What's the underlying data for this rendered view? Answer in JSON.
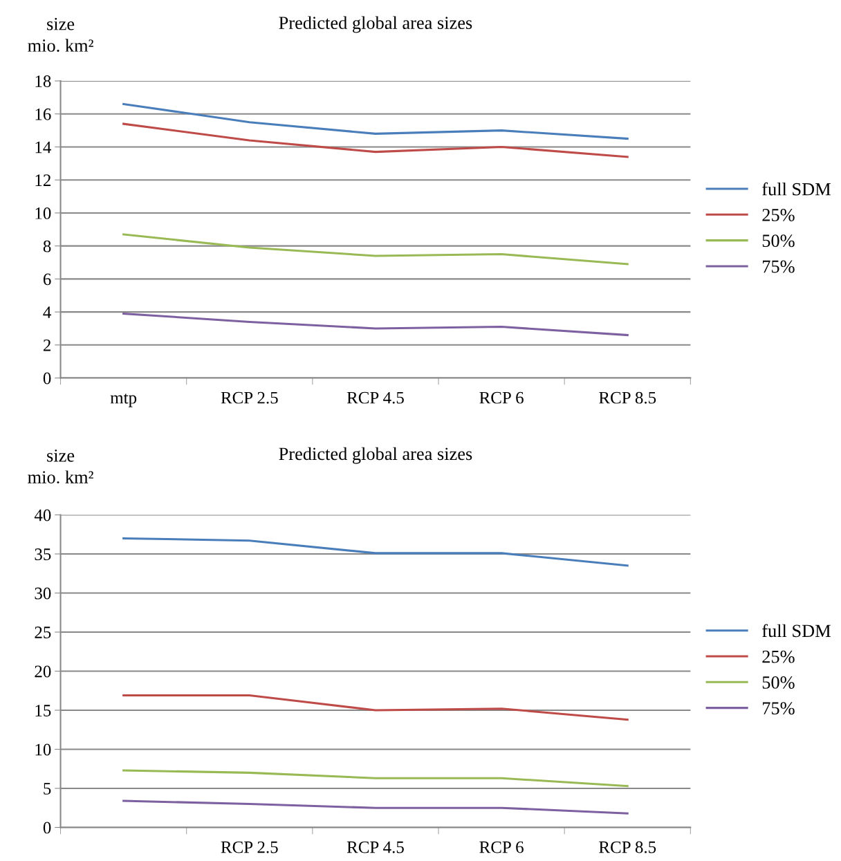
{
  "chart_data": [
    {
      "type": "line",
      "title": "Predicted global area sizes",
      "ylabel": "size\nmio. km²",
      "categories": [
        "mtp",
        "RCP 2.5",
        "RCP 4.5",
        "RCP 6",
        "RCP 8.5"
      ],
      "ylim": [
        0,
        18
      ],
      "yticks": [
        0,
        2,
        4,
        6,
        8,
        10,
        12,
        14,
        16,
        18
      ],
      "grid": "y",
      "legend": "right",
      "marker": "none",
      "line_style": "solid",
      "series": [
        {
          "name": "full SDM",
          "color": "#4a7ebb",
          "values": [
            16.6,
            15.5,
            14.8,
            15.0,
            14.5
          ]
        },
        {
          "name": "25%",
          "color": "#be4b48",
          "values": [
            15.4,
            14.4,
            13.7,
            14.0,
            13.4
          ]
        },
        {
          "name": "50%",
          "color": "#98b954",
          "values": [
            8.7,
            7.9,
            7.4,
            7.5,
            6.9
          ]
        },
        {
          "name": "75%",
          "color": "#7d60a0",
          "values": [
            3.9,
            3.4,
            3.0,
            3.1,
            2.6
          ]
        }
      ]
    },
    {
      "type": "line",
      "title": "Predicted global area sizes",
      "ylabel": "size\nmio. km²",
      "categories": [
        null,
        "RCP 2.5",
        "RCP 4.5",
        "RCP 6",
        "RCP 8.5"
      ],
      "ylim": [
        0,
        40
      ],
      "yticks": [
        0,
        5,
        10,
        15,
        20,
        25,
        30,
        35,
        40
      ],
      "grid": "y",
      "legend": "right",
      "marker": "none",
      "line_style": "solid",
      "series": [
        {
          "name": "full SDM",
          "color": "#4a7ebb",
          "values": [
            37.0,
            36.7,
            35.1,
            35.1,
            33.5
          ]
        },
        {
          "name": "25%",
          "color": "#be4b48",
          "values": [
            16.9,
            16.9,
            15.0,
            15.2,
            13.8
          ]
        },
        {
          "name": "50%",
          "color": "#98b954",
          "values": [
            7.3,
            7.0,
            6.3,
            6.3,
            5.3
          ]
        },
        {
          "name": "75%",
          "color": "#7d60a0",
          "values": [
            3.4,
            3.0,
            2.5,
            2.5,
            1.8
          ]
        }
      ]
    }
  ]
}
